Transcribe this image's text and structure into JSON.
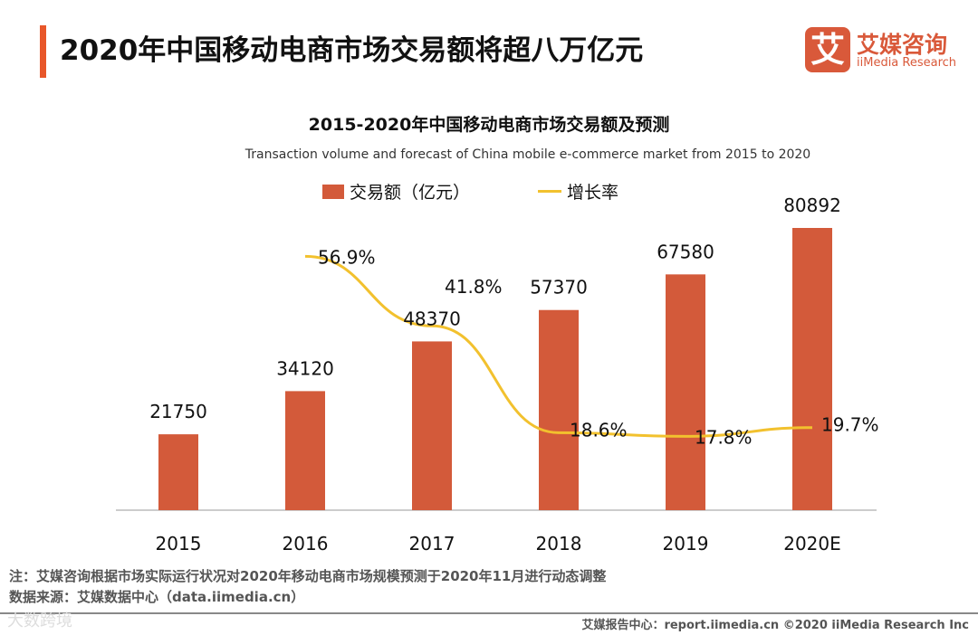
{
  "header": {
    "title": "2020年中国移动电商市场交易额将超八万亿元",
    "logo_mark": "艾",
    "logo_cn": "艾媒咨询",
    "logo_en": "iiMedia Research"
  },
  "chart_data": {
    "type": "bar",
    "title": "2015-2020年中国移动电商市场交易额及预测",
    "subtitle": "Transaction volume and forecast of China mobile e-commerce market from 2015 to 2020",
    "categories": [
      "2015",
      "2016",
      "2017",
      "2018",
      "2019",
      "2020E"
    ],
    "series": [
      {
        "name": "交易额（亿元）",
        "type": "bar",
        "color": "#d35a3a",
        "values": [
          21750,
          34120,
          48370,
          57370,
          67580,
          80892
        ]
      },
      {
        "name": "增长率",
        "type": "line",
        "color": "#f2c12e",
        "values": [
          null,
          56.9,
          41.8,
          18.6,
          17.8,
          19.7
        ],
        "labels": [
          "",
          "56.9%",
          "41.8%",
          "18.6%",
          "17.8%",
          "19.7%"
        ]
      }
    ],
    "ylim": [
      0,
      90000
    ],
    "grid": false,
    "legend": "top"
  },
  "notes": {
    "note": "注：艾媒咨询根据市场实际运行状况对2020年移动电商市场规模预测于2020年11月进行动态调整",
    "source": "数据来源：艾媒数据中心（data.iimedia.cn）"
  },
  "footer": {
    "text": "艾媒报告中心：report.iimedia.cn   ©2020  iiMedia Research  Inc",
    "watermark": "大数跨境"
  }
}
